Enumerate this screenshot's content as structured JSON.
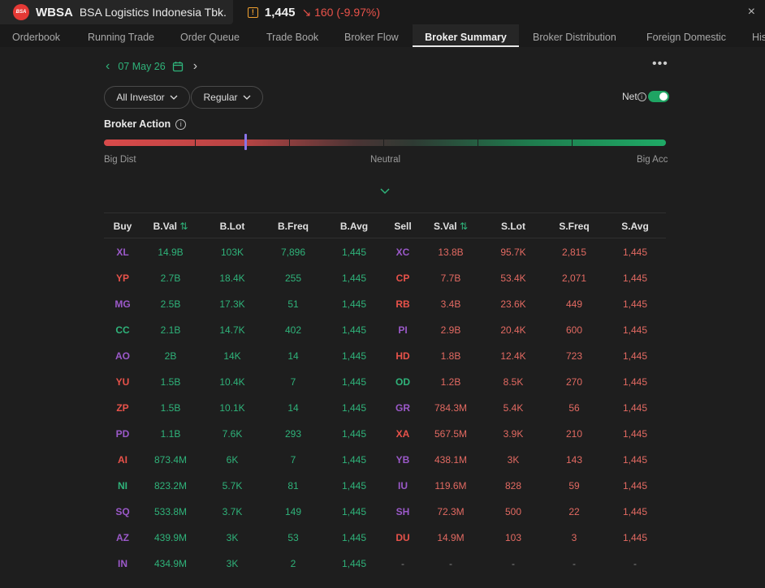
{
  "header": {
    "logo_text": "BSA",
    "ticker": "WBSA",
    "company": "BSA Logistics Indonesia Tbk.",
    "warn_icon": "!",
    "price": "1,445",
    "change_arrow": "↘",
    "change": "160 (-9.97%)",
    "close_icon": "×"
  },
  "tabs": [
    {
      "label": "Orderbook"
    },
    {
      "label": "Running Trade"
    },
    {
      "label": "Order Queue"
    },
    {
      "label": "Trade Book"
    },
    {
      "label": "Broker Flow"
    },
    {
      "label": "Broker Summary"
    },
    {
      "label": "Broker Distribution"
    },
    {
      "label": "Foreign Domestic"
    },
    {
      "label": "His"
    }
  ],
  "date": {
    "prev": "‹",
    "value": "07 May 26",
    "next": "›"
  },
  "more_icon": "•••",
  "filters": {
    "investor": "All Investor",
    "market": "Regular"
  },
  "net": {
    "label": "Net",
    "info": "i",
    "enabled": true
  },
  "broker_action": {
    "title": "Broker Action",
    "info": "i",
    "left_label": "Big Dist",
    "mid_label": "Neutral",
    "right_label": "Big Acc"
  },
  "table": {
    "headers": {
      "buy": "Buy",
      "bval": "B.Val",
      "blot": "B.Lot",
      "bfreq": "B.Freq",
      "bavg": "B.Avg",
      "sell": "Sell",
      "sval": "S.Val",
      "slot": "S.Lot",
      "sfreq": "S.Freq",
      "savg": "S.Avg",
      "sort_icon": "⇅"
    },
    "rows": [
      {
        "buy": "XL",
        "bc": "purple",
        "bval": "14.9B",
        "blot": "103K",
        "bfreq": "7,896",
        "bavg": "1,445",
        "sell": "XC",
        "sc": "purple",
        "sval": "13.8B",
        "slot": "95.7K",
        "sfreq": "2,815",
        "savg": "1,445"
      },
      {
        "buy": "YP",
        "bc": "red",
        "bval": "2.7B",
        "blot": "18.4K",
        "bfreq": "255",
        "bavg": "1,445",
        "sell": "CP",
        "sc": "red",
        "sval": "7.7B",
        "slot": "53.4K",
        "sfreq": "2,071",
        "savg": "1,445"
      },
      {
        "buy": "MG",
        "bc": "purple",
        "bval": "2.5B",
        "blot": "17.3K",
        "bfreq": "51",
        "bavg": "1,445",
        "sell": "RB",
        "sc": "red",
        "sval": "3.4B",
        "slot": "23.6K",
        "sfreq": "449",
        "savg": "1,445"
      },
      {
        "buy": "CC",
        "bc": "green",
        "bval": "2.1B",
        "blot": "14.7K",
        "bfreq": "402",
        "bavg": "1,445",
        "sell": "PI",
        "sc": "purple",
        "sval": "2.9B",
        "slot": "20.4K",
        "sfreq": "600",
        "savg": "1,445"
      },
      {
        "buy": "AO",
        "bc": "purple",
        "bval": "2B",
        "blot": "14K",
        "bfreq": "14",
        "bavg": "1,445",
        "sell": "HD",
        "sc": "red",
        "sval": "1.8B",
        "slot": "12.4K",
        "sfreq": "723",
        "savg": "1,445"
      },
      {
        "buy": "YU",
        "bc": "red",
        "bval": "1.5B",
        "blot": "10.4K",
        "bfreq": "7",
        "bavg": "1,445",
        "sell": "OD",
        "sc": "green",
        "sval": "1.2B",
        "slot": "8.5K",
        "sfreq": "270",
        "savg": "1,445"
      },
      {
        "buy": "ZP",
        "bc": "red",
        "bval": "1.5B",
        "blot": "10.1K",
        "bfreq": "14",
        "bavg": "1,445",
        "sell": "GR",
        "sc": "purple",
        "sval": "784.3M",
        "slot": "5.4K",
        "sfreq": "56",
        "savg": "1,445"
      },
      {
        "buy": "PD",
        "bc": "purple",
        "bval": "1.1B",
        "blot": "7.6K",
        "bfreq": "293",
        "bavg": "1,445",
        "sell": "XA",
        "sc": "red",
        "sval": "567.5M",
        "slot": "3.9K",
        "sfreq": "210",
        "savg": "1,445"
      },
      {
        "buy": "AI",
        "bc": "red",
        "bval": "873.4M",
        "blot": "6K",
        "bfreq": "7",
        "bavg": "1,445",
        "sell": "YB",
        "sc": "purple",
        "sval": "438.1M",
        "slot": "3K",
        "sfreq": "143",
        "savg": "1,445"
      },
      {
        "buy": "NI",
        "bc": "green",
        "bval": "823.2M",
        "blot": "5.7K",
        "bfreq": "81",
        "bavg": "1,445",
        "sell": "IU",
        "sc": "purple",
        "sval": "119.6M",
        "slot": "828",
        "sfreq": "59",
        "savg": "1,445"
      },
      {
        "buy": "SQ",
        "bc": "purple",
        "bval": "533.8M",
        "blot": "3.7K",
        "bfreq": "149",
        "bavg": "1,445",
        "sell": "SH",
        "sc": "purple",
        "sval": "72.3M",
        "slot": "500",
        "sfreq": "22",
        "savg": "1,445"
      },
      {
        "buy": "AZ",
        "bc": "purple",
        "bval": "439.9M",
        "blot": "3K",
        "bfreq": "53",
        "bavg": "1,445",
        "sell": "DU",
        "sc": "red",
        "sval": "14.9M",
        "slot": "103",
        "sfreq": "3",
        "savg": "1,445"
      },
      {
        "buy": "IN",
        "bc": "purple",
        "bval": "434.9M",
        "blot": "3K",
        "bfreq": "2",
        "bavg": "1,445",
        "sell": "-",
        "sc": "dash",
        "sval": "-",
        "slot": "-",
        "sfreq": "-",
        "savg": "-"
      }
    ]
  },
  "colors": {
    "green": "#2fb37a",
    "red": "#e8524a",
    "purple": "#9b59c9",
    "background": "#1e1e1e",
    "marker": "#8a74e8"
  }
}
